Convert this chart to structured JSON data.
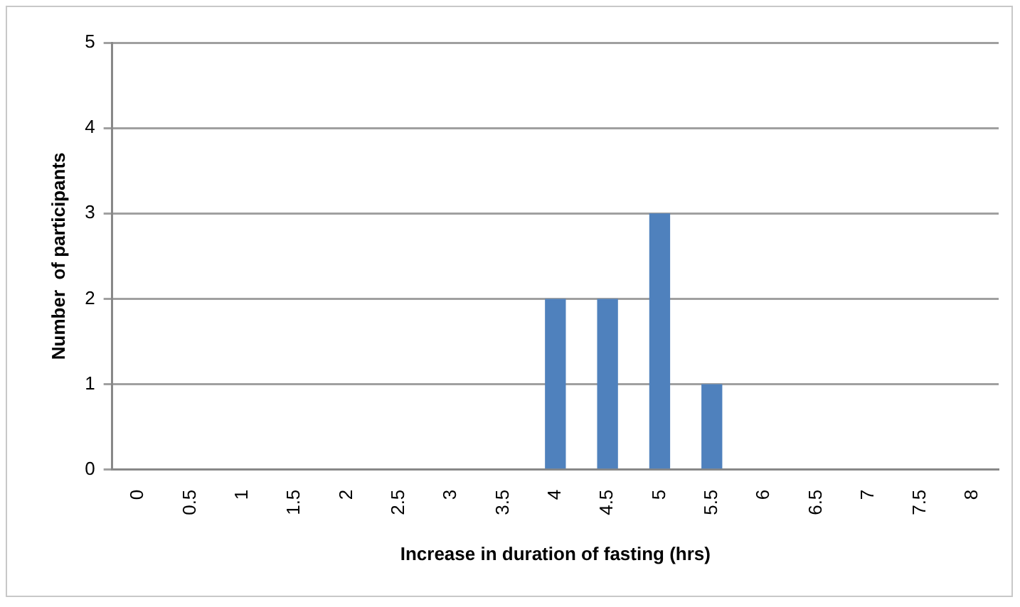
{
  "chart_data": {
    "type": "bar",
    "xlabel": "Increase in duration of fasting (hrs)",
    "ylabel": "Number  of participants",
    "categories": [
      "0",
      "0.5",
      "1",
      "1.5",
      "2",
      "2.5",
      "3",
      "3.5",
      "4",
      "4.5",
      "5",
      "5.5",
      "6",
      "6.5",
      "7",
      "7.5",
      "8"
    ],
    "values": [
      0,
      0,
      0,
      0,
      0,
      0,
      0,
      0,
      2,
      2,
      3,
      1,
      0,
      0,
      0,
      0,
      0
    ],
    "color": "#4f81bd",
    "ylim": [
      0,
      5
    ],
    "yticks": [
      0,
      1,
      2,
      3,
      4,
      5
    ],
    "grid": "y",
    "legend": false
  }
}
